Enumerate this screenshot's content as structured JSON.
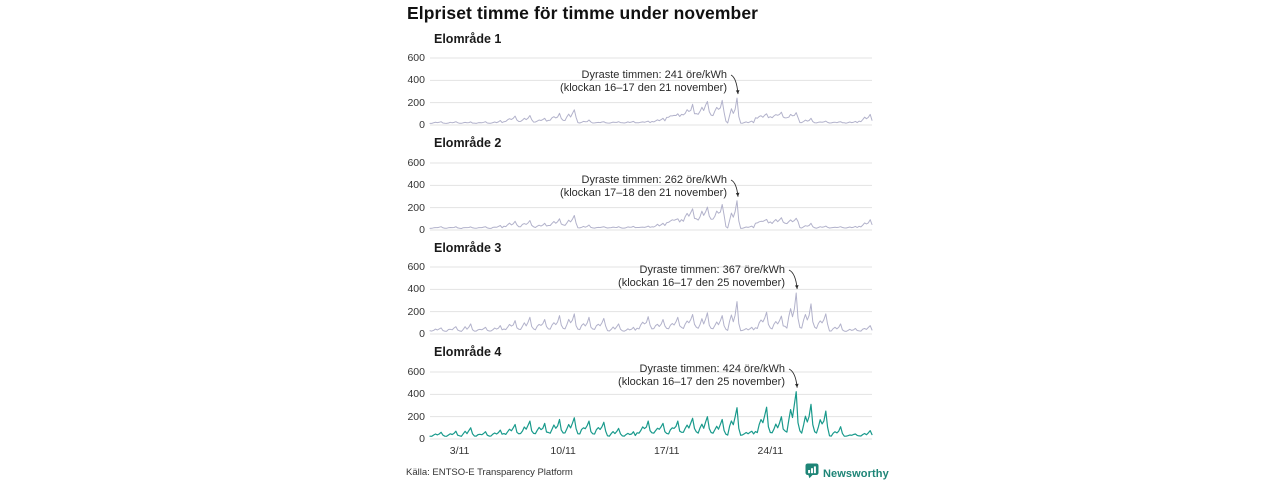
{
  "title": "Elpriset timme för timme under november",
  "footer": {
    "source": "Källa: ENTSO-E Transparency Platform",
    "brand": "Newsworthy"
  },
  "colors": {
    "line_purple": "#b2b2cb",
    "line_teal": "#199a8c",
    "grid": "#e3e3e3",
    "brand_teal": "#1e8577",
    "annotation_text": "#2b2b2b",
    "title_text": "#111111"
  },
  "chart_data": {
    "type": "line",
    "title": "Elpriset timme för timme under november",
    "xlabel": "",
    "ylabel": "öre/kWh",
    "x_unit": "hourly, 1–30 November",
    "days": 30,
    "samples_per_day": 8,
    "xticks": [
      {
        "label": "3/11",
        "day": 3
      },
      {
        "label": "10/11",
        "day": 10
      },
      {
        "label": "17/11",
        "day": 17
      },
      {
        "label": "24/11",
        "day": 24
      }
    ],
    "yticks": [
      0,
      200,
      400,
      600
    ],
    "ylim": [
      0,
      700
    ],
    "grid": true,
    "subplots": [
      {
        "title": "Elområde 1",
        "color": "#b2b2cb",
        "max_value": 241,
        "max_day": 21,
        "annotation": {
          "line1": "Dyraste timmen: 241 öre/kWh",
          "line2": "(klockan 16–17 den 21 november)"
        },
        "daily_min": [
          15,
          15,
          15,
          15,
          15,
          30,
          30,
          25,
          40,
          40,
          18,
          18,
          18,
          18,
          20,
          30,
          70,
          85,
          90,
          90,
          20,
          15,
          60,
          65,
          60,
          20,
          18,
          18,
          18,
          30
        ],
        "daily_peak": [
          30,
          30,
          28,
          30,
          40,
          80,
          85,
          60,
          105,
          136,
          45,
          30,
          30,
          32,
          35,
          60,
          100,
          185,
          210,
          220,
          241,
          35,
          100,
          115,
          110,
          60,
          35,
          30,
          32,
          95
        ]
      },
      {
        "title": "Elområde 2",
        "color": "#b2b2cb",
        "max_value": 262,
        "max_day": 21,
        "annotation": {
          "line1": "Dyraste timmen: 262 öre/kWh",
          "line2": "(klockan 17–18 den 21 november)"
        },
        "daily_min": [
          15,
          15,
          15,
          15,
          15,
          30,
          30,
          25,
          40,
          40,
          18,
          18,
          18,
          18,
          20,
          30,
          70,
          85,
          90,
          90,
          20,
          15,
          60,
          65,
          60,
          20,
          18,
          18,
          18,
          30
        ],
        "daily_peak": [
          30,
          30,
          28,
          30,
          40,
          78,
          85,
          60,
          100,
          130,
          45,
          30,
          30,
          32,
          35,
          60,
          100,
          190,
          205,
          228,
          262,
          35,
          95,
          110,
          105,
          60,
          35,
          30,
          32,
          92
        ]
      },
      {
        "title": "Elområde 3",
        "color": "#b2b2cb",
        "max_value": 367,
        "max_day": 25,
        "annotation": {
          "line1": "Dyraste timmen: 367 öre/kWh",
          "line2": "(klockan 16–17 den 25 november)"
        },
        "daily_min": [
          25,
          25,
          25,
          25,
          25,
          40,
          40,
          40,
          45,
          45,
          40,
          40,
          25,
          25,
          45,
          45,
          45,
          50,
          50,
          45,
          30,
          30,
          50,
          50,
          55,
          50,
          50,
          25,
          25,
          25
        ],
        "daily_peak": [
          55,
          65,
          90,
          60,
          75,
          120,
          150,
          130,
          165,
          180,
          150,
          140,
          90,
          60,
          155,
          130,
          150,
          175,
          190,
          165,
          290,
          60,
          195,
          160,
          367,
          270,
          180,
          90,
          50,
          75
        ]
      },
      {
        "title": "Elområde 4",
        "color": "#199a8c",
        "max_value": 424,
        "max_day": 25,
        "annotation": {
          "line1": "Dyraste timmen: 424 öre/kWh",
          "line2": "(klockan 16–17 den 25 november)"
        },
        "daily_min": [
          25,
          25,
          25,
          25,
          25,
          45,
          45,
          45,
          50,
          50,
          45,
          45,
          25,
          25,
          50,
          50,
          50,
          55,
          55,
          50,
          35,
          35,
          55,
          55,
          60,
          55,
          55,
          25,
          25,
          25
        ],
        "daily_peak": [
          60,
          70,
          100,
          65,
          80,
          130,
          160,
          140,
          175,
          190,
          160,
          150,
          95,
          65,
          160,
          140,
          160,
          185,
          200,
          175,
          280,
          70,
          285,
          200,
          424,
          310,
          250,
          110,
          45,
          75
        ]
      }
    ]
  }
}
